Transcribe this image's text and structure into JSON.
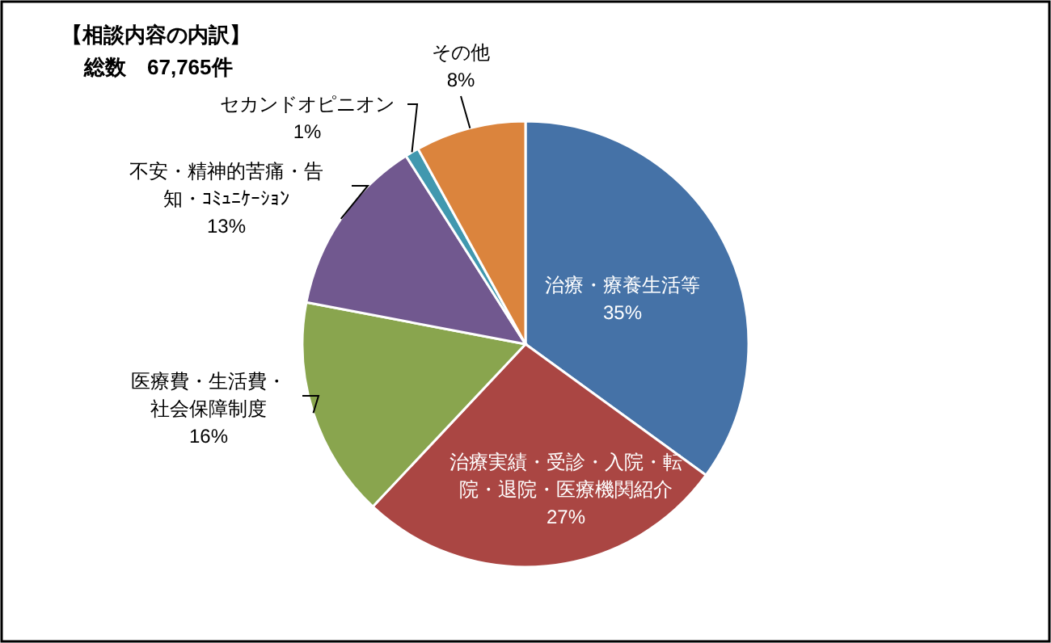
{
  "chart_data": {
    "type": "pie",
    "title": "【相談内容の内訳】",
    "subtitle": "総数　67,765件",
    "categories": [
      "治療・療養生活等",
      "治療実績・受診・入院・転院・退院・医療機関紹介",
      "医療費・生活費・社会保障制度",
      "不安・精神的苦痛・告知・ｺﾐｭﾆｹｰｼｮﾝ",
      "セカンドオピニオン",
      "その他"
    ],
    "values": [
      35,
      27,
      16,
      13,
      1,
      8
    ],
    "colors": [
      "#4572a7",
      "#aa4643",
      "#89a54e",
      "#71588f",
      "#4198af",
      "#db843d"
    ],
    "value_labels": [
      "35%",
      "27%",
      "16%",
      "13%",
      "1%",
      "8%"
    ]
  }
}
